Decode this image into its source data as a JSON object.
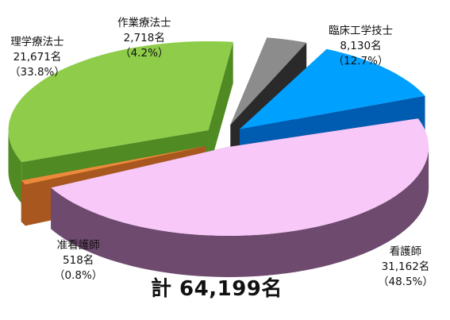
{
  "chart_data": {
    "type": "pie",
    "style": "3d-exploded",
    "labels": [
      {
        "name": "臨床工学技士",
        "value_text": "8,130名",
        "pct_text": "（12.7%）"
      },
      {
        "name": "看護師",
        "value_text": "31,162名",
        "pct_text": "（48.5%）"
      },
      {
        "name": "准看護師",
        "value_text": "518名",
        "pct_text": "（0.8%）"
      },
      {
        "name": "理学療法士",
        "value_text": "21,671名",
        "pct_text": "（33.8%）"
      },
      {
        "name": "作業療法士",
        "value_text": "2,718名",
        "pct_text": "（4.2%）"
      }
    ],
    "slices": [
      {
        "name": "臨床工学技士",
        "value": 8130,
        "percent": 12.7,
        "top": "#00a0ff",
        "side": "#005cb0"
      },
      {
        "name": "看護師",
        "value": 31162,
        "percent": 48.5,
        "top": "#f8c8f8",
        "side": "#6e4a6e"
      },
      {
        "name": "准看護師",
        "value": 518,
        "percent": 0.8,
        "top": "#ec8a3c",
        "side": "#a8571e"
      },
      {
        "name": "理学療法士",
        "value": 21671,
        "percent": 33.8,
        "top": "#8ecc4a",
        "side": "#4f8a22"
      },
      {
        "name": "作業療法士",
        "value": 2718,
        "percent": 4.2,
        "top": "#8c8c8c",
        "side": "#2a2a2a"
      }
    ],
    "total_text": "計 64,199名"
  }
}
